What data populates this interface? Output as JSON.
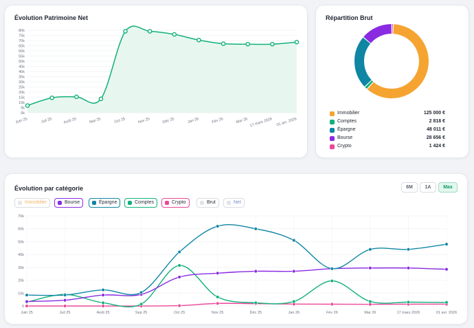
{
  "net": {
    "title": "Évolution Patrimoine Net",
    "color": "#12b07a",
    "fill": "#e7f7ef",
    "ylim": [
      0,
      80000
    ],
    "yticks": [
      "0k",
      "5k",
      "10k",
      "15k",
      "20k",
      "25k",
      "30k",
      "35k",
      "40k",
      "45k",
      "50k",
      "55k",
      "60k",
      "65k",
      "70k",
      "75k",
      "80k"
    ],
    "xlabels": [
      "Juin 25",
      "Juil 25",
      "Août 25",
      "Sep 25",
      "Oct 25",
      "Nov 25",
      "Déc 25",
      "Jan 26",
      "Fév 26",
      "Mar 26",
      "17 mars 2026",
      "01 avr. 2026"
    ]
  },
  "repartition": {
    "title": "Répartition Brut",
    "items": [
      {
        "label": "Immobilier",
        "value": "125 000 €",
        "color": "#f5a431"
      },
      {
        "label": "Comptes",
        "value": "2 818 €",
        "color": "#12b07a"
      },
      {
        "label": "Épargne",
        "value": "48 011 €",
        "color": "#0f86a3"
      },
      {
        "label": "Bourse",
        "value": "28 656 €",
        "color": "#8a2be2"
      },
      {
        "label": "Crypto",
        "value": "1 424 €",
        "color": "#ec4899"
      }
    ]
  },
  "categorie": {
    "title": "Évolution par catégorie",
    "ranges": [
      "6M",
      "1A",
      "Max"
    ],
    "active_range": "Max",
    "toggles": [
      {
        "label": "Immobilier",
        "color": "#f5c488",
        "active": false
      },
      {
        "label": "Bourse",
        "color": "#8a2be2",
        "active": true
      },
      {
        "label": "Épargne",
        "color": "#0f86a3",
        "active": true
      },
      {
        "label": "Comptes",
        "color": "#12b07a",
        "active": true
      },
      {
        "label": "Crypto",
        "color": "#ec4899",
        "active": true
      },
      {
        "label": "Brut",
        "color": "#d3d6dc",
        "active": false
      },
      {
        "label": "Net",
        "color": "#d3d6dc",
        "active": false
      }
    ]
  },
  "chart_data": [
    {
      "type": "area",
      "title": "Évolution Patrimoine Net",
      "categories": [
        "Juin 25",
        "Juil 25",
        "Août 25",
        "Sep 25",
        "Oct 25",
        "Nov 25",
        "Déc 25",
        "Jan 26",
        "Fév 26",
        "Mar 26",
        "17 mars 2026",
        "01 avr. 2026"
      ],
      "values": [
        7000,
        14500,
        15500,
        13500,
        79000,
        79000,
        76000,
        70500,
        67000,
        66500,
        66500,
        68500
      ],
      "ylim": [
        0,
        80000
      ],
      "grid": true
    },
    {
      "type": "pie",
      "title": "Répartition Brut",
      "categories": [
        "Immobilier",
        "Comptes",
        "Épargne",
        "Bourse",
        "Crypto"
      ],
      "values": [
        125000,
        2818,
        48011,
        28656,
        1424
      ],
      "donut": true
    },
    {
      "type": "line",
      "title": "Évolution par catégorie",
      "categories": [
        "Juin 25",
        "Juil 25",
        "Août 25",
        "Sep 25",
        "Oct 25",
        "Nov 25",
        "Déc 25",
        "Jan 26",
        "Fév 26",
        "Mar 26",
        "17 mars 2026",
        "01 avr. 2026"
      ],
      "series": [
        {
          "name": "Épargne",
          "color": "#0f86a3",
          "values": [
            8500,
            8500,
            12500,
            10500,
            42000,
            62000,
            60000,
            51000,
            29000,
            44000,
            44000,
            48000
          ]
        },
        {
          "name": "Bourse",
          "color": "#8a2be2",
          "values": [
            3500,
            4500,
            8500,
            9000,
            22500,
            25500,
            27000,
            27000,
            29000,
            29500,
            29500,
            28500
          ]
        },
        {
          "name": "Comptes",
          "color": "#12b07a",
          "values": [
            3000,
            9000,
            2500,
            1500,
            31500,
            7000,
            2500,
            3500,
            19500,
            3500,
            3000,
            2800
          ]
        },
        {
          "name": "Crypto",
          "color": "#ec4899",
          "values": [
            0,
            0,
            0,
            0,
            300,
            2000,
            1800,
            1500,
            1400,
            1300,
            1400,
            1424
          ]
        }
      ],
      "ylim": [
        0,
        70000
      ],
      "yticks": [
        "0",
        "10k",
        "20k",
        "30k",
        "40k",
        "50k",
        "60k",
        "70k"
      ],
      "grid": true
    }
  ]
}
